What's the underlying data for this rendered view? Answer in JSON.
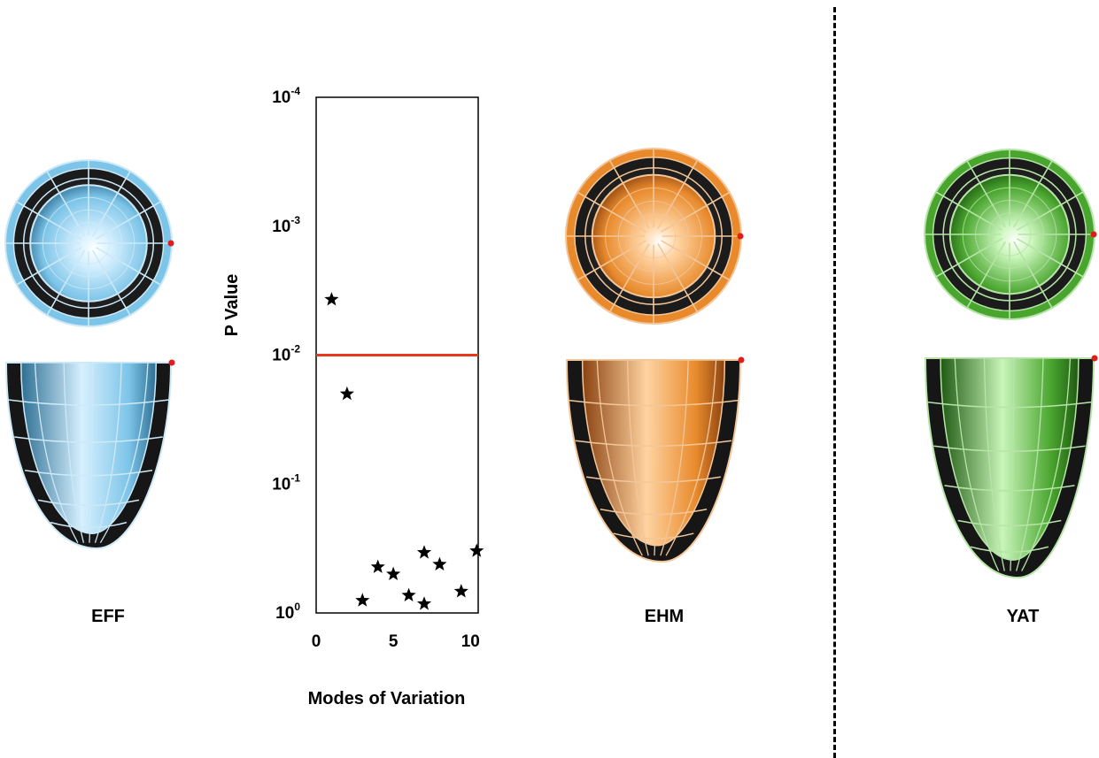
{
  "models": [
    {
      "name": "EFF",
      "palette": {
        "light": "#d6f0ff",
        "mid": "#7cc4e8",
        "dark": "#2e6f93",
        "wire": "#cde9f7"
      }
    },
    {
      "name": "EHM",
      "palette": {
        "light": "#ffd3a0",
        "mid": "#e88a2c",
        "dark": "#8a4210",
        "wire": "#f3c699"
      }
    },
    {
      "name": "YAT",
      "palette": {
        "light": "#c8f5b9",
        "mid": "#4aa52f",
        "dark": "#1f5a12",
        "wire": "#b7e4a8"
      }
    }
  ],
  "marker_color": "#e21b1b",
  "chart_data": {
    "type": "scatter",
    "xlabel": "Modes of Variation",
    "ylabel": "P Value",
    "y_scale": "log-reversed",
    "x_ticks": [
      "0",
      "5",
      "10"
    ],
    "xlim": [
      0,
      10.5
    ],
    "y_ticks": [
      {
        "base": "10",
        "exp": "-4"
      },
      {
        "base": "10",
        "exp": "-3"
      },
      {
        "base": "10",
        "exp": "-2"
      },
      {
        "base": "10",
        "exp": "-1"
      },
      {
        "base": "10",
        "exp": "0"
      }
    ],
    "ylim": [
      1,
      0.0001
    ],
    "threshold": {
      "value": 0.01,
      "color": "#e8391f"
    },
    "marker": "star",
    "points": [
      {
        "x": 1,
        "y": 0.0037
      },
      {
        "x": 2,
        "y": 0.02
      },
      {
        "x": 3,
        "y": 0.8
      },
      {
        "x": 4,
        "y": 0.44
      },
      {
        "x": 5,
        "y": 0.5
      },
      {
        "x": 6,
        "y": 0.73
      },
      {
        "x": 7,
        "y": 0.34
      },
      {
        "x": 7,
        "y": 0.85
      },
      {
        "x": 8,
        "y": 0.42
      },
      {
        "x": 9.4,
        "y": 0.68
      },
      {
        "x": 10.4,
        "y": 0.33
      }
    ]
  }
}
